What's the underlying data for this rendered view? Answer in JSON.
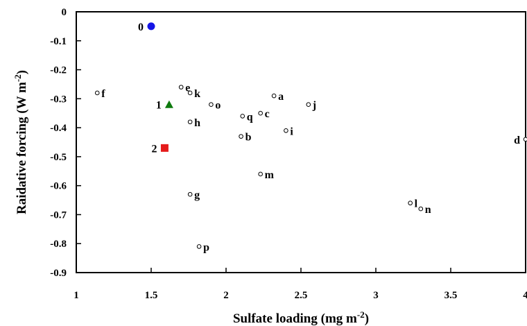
{
  "chart_data": {
    "type": "scatter",
    "xlabel": "Sulfate  loading (mg m",
    "xlabel_sup": "-2",
    "xlabel_end": ")",
    "ylabel": "Raidative  forcing  (W m",
    "ylabel_sup": "-2",
    "ylabel_end": ")",
    "xlim": [
      1,
      4
    ],
    "ylim": [
      -0.9,
      0
    ],
    "xticks": [
      "1",
      "1.5",
      "2",
      "2.5",
      "3",
      "3.5",
      "4"
    ],
    "yticks": [
      "0",
      "-0.1",
      "-0.2",
      "-0.3",
      "-0.4",
      "-0.5",
      "-0.6",
      "-0.7",
      "-0.8",
      "-0.9"
    ],
    "grid": false,
    "highlighted_points": [
      {
        "label": "0",
        "x": 1.5,
        "y": -0.05,
        "marker": "circle",
        "color": "#1515e6"
      },
      {
        "label": "1",
        "x": 1.62,
        "y": -0.32,
        "marker": "triangle",
        "color": "#0e7a0e"
      },
      {
        "label": "2",
        "x": 1.59,
        "y": -0.47,
        "marker": "square",
        "color": "#e51b1b"
      }
    ],
    "points": [
      {
        "label": "a",
        "x": 2.32,
        "y": -0.29
      },
      {
        "label": "b",
        "x": 2.1,
        "y": -0.43
      },
      {
        "label": "c",
        "x": 2.23,
        "y": -0.35
      },
      {
        "label": "d",
        "x": 4.0,
        "y": -0.44
      },
      {
        "label": "e",
        "x": 1.7,
        "y": -0.26
      },
      {
        "label": "f",
        "x": 1.14,
        "y": -0.28
      },
      {
        "label": "g",
        "x": 1.76,
        "y": -0.63
      },
      {
        "label": "h",
        "x": 1.76,
        "y": -0.38
      },
      {
        "label": "i",
        "x": 2.4,
        "y": -0.41
      },
      {
        "label": "j",
        "x": 2.55,
        "y": -0.32
      },
      {
        "label": "k",
        "x": 1.76,
        "y": -0.28
      },
      {
        "label": "l",
        "x": 3.23,
        "y": -0.66
      },
      {
        "label": "m",
        "x": 2.23,
        "y": -0.56
      },
      {
        "label": "n",
        "x": 3.3,
        "y": -0.68
      },
      {
        "label": "o",
        "x": 1.9,
        "y": -0.32
      },
      {
        "label": "p",
        "x": 1.82,
        "y": -0.81
      },
      {
        "label": "q",
        "x": 2.11,
        "y": -0.36
      }
    ]
  }
}
